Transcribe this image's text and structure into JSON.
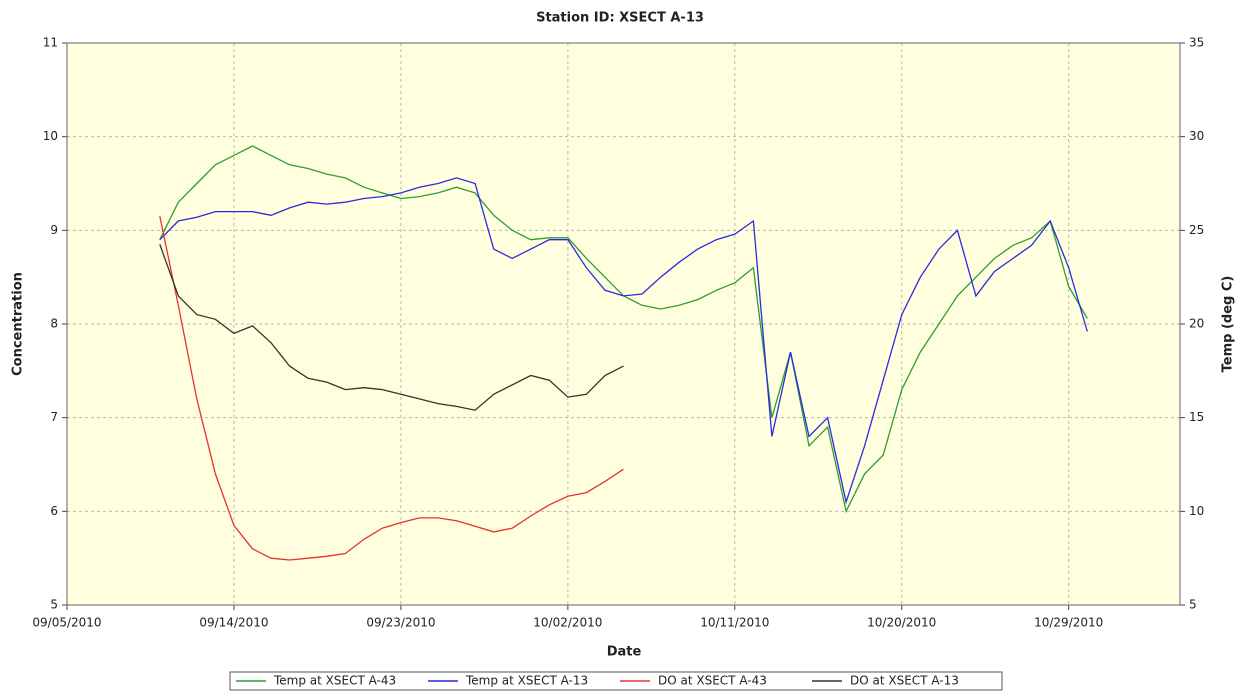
{
  "chart_data": {
    "type": "line",
    "title": "Station ID: XSECT A-13",
    "x_label": "Date",
    "y_label": "Concentration",
    "y2_label": "Temp  (deg C)",
    "x": [
      "09/10/2010",
      "09/11/2010",
      "09/12/2010",
      "09/13/2010",
      "09/14/2010",
      "09/15/2010",
      "09/16/2010",
      "09/17/2010",
      "09/18/2010",
      "09/19/2010",
      "09/20/2010",
      "09/21/2010",
      "09/22/2010",
      "09/23/2010",
      "09/24/2010",
      "09/25/2010",
      "09/26/2010",
      "09/27/2010",
      "09/28/2010",
      "09/29/2010",
      "09/30/2010",
      "10/01/2010",
      "10/02/2010",
      "10/03/2010",
      "10/04/2010",
      "10/05/2010",
      "10/06/2010",
      "10/07/2010",
      "10/08/2010",
      "10/09/2010",
      "10/10/2010",
      "10/11/2010",
      "10/12/2010",
      "10/13/2010",
      "10/14/2010",
      "10/15/2010",
      "10/16/2010",
      "10/17/2010",
      "10/18/2010",
      "10/19/2010",
      "10/20/2010",
      "10/21/2010",
      "10/22/2010",
      "10/23/2010",
      "10/24/2010",
      "10/25/2010",
      "10/26/2010",
      "10/27/2010",
      "10/28/2010",
      "10/29/2010",
      "10/30/2010"
    ],
    "series": [
      {
        "name": "Temp at XSECT A-43",
        "color": "#2e9e2e",
        "axis": "y2",
        "values": [
          24.5,
          26.5,
          27.5,
          28.5,
          29,
          29.5,
          29,
          28.5,
          28.3,
          28,
          27.8,
          27.3,
          27,
          26.7,
          26.8,
          27,
          27.3,
          27,
          25.8,
          25,
          24.5,
          24.6,
          24.6,
          23.5,
          22.5,
          21.5,
          21,
          20.8,
          21,
          21.3,
          21.8,
          22.2,
          23,
          15,
          18.5,
          13.5,
          14.5,
          10,
          12,
          13,
          16.5,
          18.5,
          20,
          21.5,
          22.5,
          23.5,
          24.2,
          24.6,
          25.5,
          22,
          20.3
        ]
      },
      {
        "name": "Temp at XSECT A-13",
        "color": "#2b2bdc",
        "axis": "y2",
        "values": [
          24.5,
          25.5,
          25.7,
          26,
          26,
          26,
          25.8,
          26.2,
          26.5,
          26.4,
          26.5,
          26.7,
          26.8,
          27,
          27.3,
          27.5,
          27.8,
          27.5,
          24,
          23.5,
          24,
          24.5,
          24.5,
          23,
          21.8,
          21.5,
          21.6,
          22.5,
          23.3,
          24,
          24.5,
          24.8,
          25.5,
          14,
          18.5,
          14,
          15,
          10.5,
          13.5,
          17,
          20.5,
          22.5,
          24,
          25,
          21.5,
          22.8,
          23.5,
          24.2,
          25.5,
          23,
          19.6
        ]
      },
      {
        "name": "DO at XSECT A-43",
        "color": "#e83030",
        "values": [
          9.15,
          8.2,
          7.2,
          6.4,
          5.85,
          5.6,
          5.5,
          5.48,
          5.5,
          5.52,
          5.55,
          5.7,
          5.82,
          5.88,
          5.93,
          5.93,
          5.9,
          5.84,
          5.78,
          5.82,
          5.95,
          6.07,
          6.16,
          6.2,
          6.32,
          6.45,
          null,
          null,
          null,
          null,
          null,
          null,
          null,
          null,
          null,
          null,
          null,
          null,
          null,
          null,
          null,
          null,
          null,
          null,
          null,
          null,
          null,
          null,
          null,
          null,
          null
        ]
      },
      {
        "name": "DO at XSECT A-13",
        "color": "#333333",
        "values": [
          8.85,
          8.3,
          8.1,
          8.05,
          7.9,
          7.98,
          7.8,
          7.55,
          7.42,
          7.38,
          7.3,
          7.32,
          7.3,
          7.25,
          7.2,
          7.15,
          7.12,
          7.08,
          7.25,
          7.35,
          7.45,
          7.4,
          7.22,
          7.25,
          7.45,
          7.55,
          null,
          null,
          null,
          null,
          null,
          null,
          null,
          null,
          null,
          null,
          null,
          null,
          null,
          null,
          null,
          null,
          null,
          null,
          null,
          null,
          null,
          null,
          null,
          null,
          null
        ]
      }
    ],
    "xlim": [
      "09/05/2010",
      "11/04/2010"
    ],
    "xticks": [
      "09/05/2010",
      "09/14/2010",
      "09/23/2010",
      "10/02/2010",
      "10/11/2010",
      "10/20/2010",
      "10/29/2010"
    ],
    "ylim": [
      5,
      11
    ],
    "yticks": [
      5,
      6,
      7,
      8,
      9,
      10,
      11
    ],
    "y2lim": [
      5,
      35
    ],
    "y2ticks": [
      5,
      10,
      15,
      20,
      25,
      30,
      35
    ],
    "grid": true,
    "legend": "bottom",
    "background": "#ffffe0"
  }
}
